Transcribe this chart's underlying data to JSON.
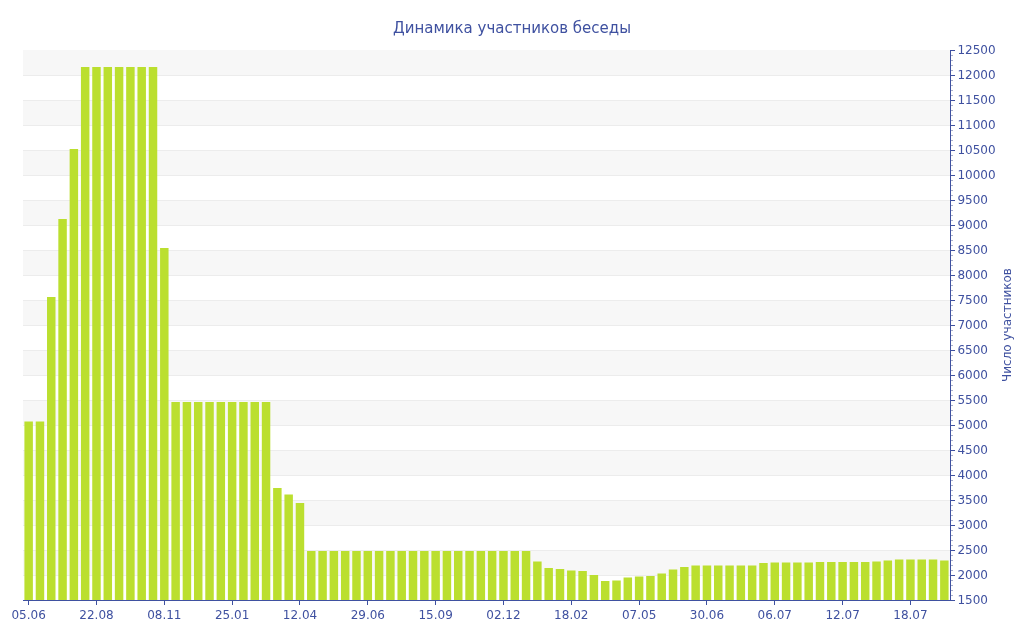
{
  "chart_data": {
    "type": "bar",
    "title": "Динамика участников беседы",
    "ylabel": "Число участников",
    "color": "#bbdf2f",
    "categories": [
      "05.06",
      null,
      null,
      null,
      null,
      null,
      "22.08",
      null,
      null,
      null,
      null,
      null,
      "08.11",
      null,
      null,
      null,
      null,
      null,
      "25.01",
      null,
      null,
      null,
      null,
      null,
      "12.04",
      null,
      null,
      null,
      null,
      null,
      "29.06",
      null,
      null,
      null,
      null,
      null,
      "15.09",
      null,
      null,
      null,
      null,
      null,
      "02.12",
      null,
      null,
      null,
      null,
      null,
      "18.02",
      null,
      null,
      null,
      null,
      null,
      "07.05",
      null,
      null,
      null,
      null,
      null,
      "30.06",
      null,
      null,
      null,
      null,
      null,
      "06.07",
      null,
      null,
      null,
      null,
      null,
      "12.07",
      null,
      null,
      null,
      null,
      null,
      "18.07",
      null,
      null,
      null
    ],
    "values": [
      5070,
      5070,
      7560,
      9120,
      10520,
      12160,
      12160,
      12160,
      12160,
      12160,
      12160,
      12160,
      8540,
      5460,
      5460,
      5460,
      5460,
      5460,
      5460,
      5460,
      5460,
      5460,
      3740,
      3610,
      3440,
      2480,
      2480,
      2480,
      2480,
      2480,
      2480,
      2480,
      2480,
      2480,
      2480,
      2480,
      2480,
      2480,
      2480,
      2480,
      2480,
      2480,
      2480,
      2480,
      2480,
      2270,
      2140,
      2120,
      2090,
      2080,
      2000,
      1880,
      1890,
      1950,
      1970,
      1980,
      2030,
      2110,
      2160,
      2190,
      2190,
      2190,
      2190,
      2190,
      2190,
      2240,
      2250,
      2250,
      2250,
      2250,
      2260,
      2260,
      2260,
      2260,
      2260,
      2270,
      2290,
      2310,
      2310,
      2310,
      2310,
      2290
    ],
    "ylim": [
      1500,
      12500
    ],
    "yticks": [
      1500,
      2000,
      2500,
      3000,
      3500,
      4000,
      4500,
      5000,
      5500,
      6000,
      6500,
      7000,
      7500,
      8000,
      8500,
      9000,
      9500,
      10000,
      10500,
      11000,
      11500,
      12000,
      12500
    ],
    "grid": true,
    "legend": false
  }
}
